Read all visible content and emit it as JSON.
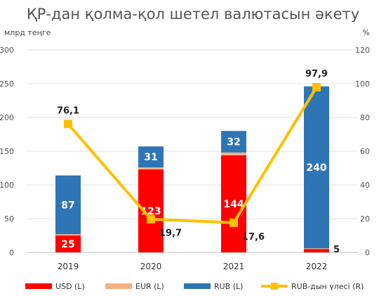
{
  "chart_data": {
    "type": "bar",
    "title": "ҚР-дан қолма-қол шетел валютасын әкету",
    "ylabel_left": "млрд теңге",
    "ylabel_right": "%",
    "categories": [
      "2019",
      "2020",
      "2021",
      "2022"
    ],
    "ylim_left": [
      0,
      300
    ],
    "yticks_left": [
      "0",
      "50",
      "100",
      "150",
      "200",
      "250",
      "300"
    ],
    "ylim_right": [
      0,
      120
    ],
    "yticks_right": [
      "0",
      "20",
      "40",
      "60",
      "80",
      "100",
      "120"
    ],
    "grid": true,
    "legend_position": "bottom",
    "series": [
      {
        "name": "USD (L)",
        "color": "#ff0000",
        "axis": "left",
        "type": "stacked-bar",
        "values": [
          25,
          123,
          144,
          5
        ],
        "labels": [
          "25",
          "123",
          "144",
          "5"
        ]
      },
      {
        "name": "EUR (L)",
        "color": "#f4b183",
        "axis": "left",
        "type": "stacked-bar",
        "values": [
          2,
          3,
          4,
          1
        ],
        "labels": [
          "",
          "",
          "",
          ""
        ]
      },
      {
        "name": "RUB (L)",
        "color": "#2e75b6",
        "axis": "left",
        "type": "stacked-bar",
        "values": [
          87,
          31,
          32,
          240
        ],
        "labels": [
          "87",
          "31",
          "32",
          "240"
        ]
      },
      {
        "name": "RUB-дын үлесі (R)",
        "color": "#ffc000",
        "axis": "right",
        "type": "line",
        "values": [
          76.1,
          19.7,
          17.6,
          97.9
        ],
        "labels": [
          "76,1",
          "19,7",
          "17,6",
          "97,9"
        ]
      }
    ]
  }
}
